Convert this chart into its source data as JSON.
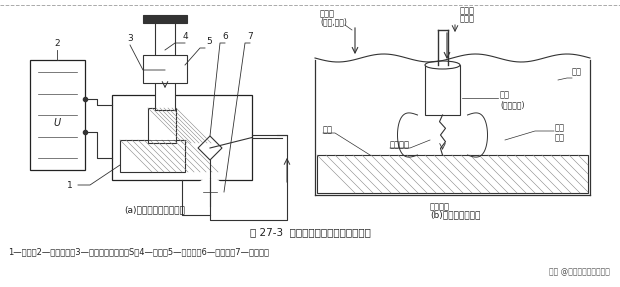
{
  "bg_color": "#ffffff",
  "fig_title": "图 27-3  电火花成型加工原理的示意图",
  "caption_a": "(a)电火花成型加工原理",
  "caption_b": "(b)放电状况微观图",
  "legend_line": "1—工件；2—脉冲电源；3—自动进给调节装置S；4—工具；5—工作液；6—过滤器；7—工作液泵",
  "watermark": "头条 @青华模具学院小欢欢",
  "font_color": "#222222",
  "title_fontsize": 7.5,
  "caption_fontsize": 6.5,
  "legend_fontsize": 6.0
}
